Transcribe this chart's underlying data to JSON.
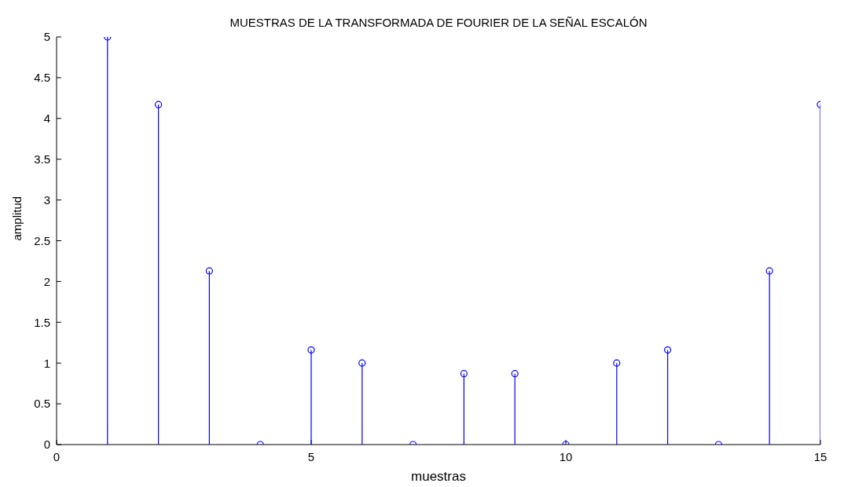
{
  "chart_data": {
    "type": "lollipop",
    "title": "MUESTRAS DE LA TRANSFORMADA DE FOURIER DE LA SEÑAL ESCALÓN",
    "xlabel": "muestras",
    "ylabel": "amplitud",
    "x": [
      1,
      2,
      3,
      4,
      5,
      6,
      7,
      8,
      9,
      10,
      11,
      12,
      13,
      14,
      15
    ],
    "series": [
      {
        "color": "#0000ff",
        "values": [
          5,
          4.17,
          2.13,
          0,
          1.16,
          1,
          0,
          0.87,
          0.87,
          0,
          1,
          1.16,
          0,
          2.13,
          4.17
        ]
      }
    ],
    "xlim": [
      0,
      15
    ],
    "xticks": [
      0,
      5,
      10,
      15
    ],
    "ylim": [
      0,
      5
    ],
    "yticks": [
      0,
      0.5,
      1,
      1.5,
      2,
      2.5,
      3,
      3.5,
      4,
      4.5,
      5
    ],
    "grid": false,
    "marker": "circle",
    "line_style": "solid"
  }
}
